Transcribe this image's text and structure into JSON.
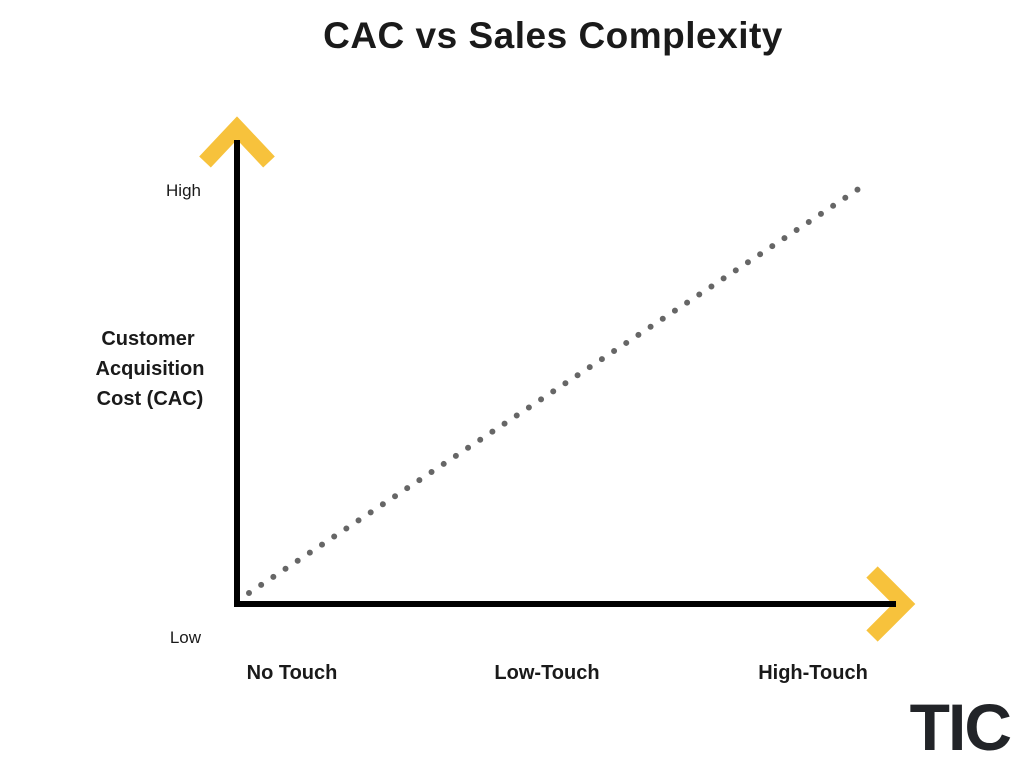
{
  "title": "CAC vs Sales Complexity",
  "y_axis": {
    "title_lines": [
      "Customer",
      "Acquisition",
      "Cost (CAC)"
    ],
    "high": "High",
    "low": "Low"
  },
  "x_axis": {
    "labels": [
      "No Touch",
      "Low-Touch",
      "High-Touch"
    ]
  },
  "logo": "TIC"
}
